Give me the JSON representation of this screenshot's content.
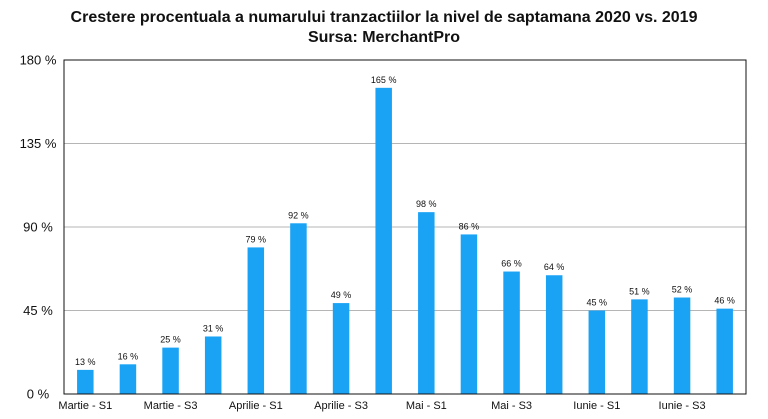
{
  "chart_data": {
    "type": "bar",
    "title": "Crestere procentuala a numarului tranzactiilor la nivel de saptamana 2020 vs. 2019",
    "subtitle": "Sursa: MerchantPro",
    "xlabel": "",
    "ylabel": "",
    "ylim": [
      0,
      180
    ],
    "yticks": [
      0,
      45,
      90,
      135,
      180
    ],
    "ytick_labels": [
      "0 %",
      "45 %",
      "90 %",
      "135 %",
      "180 %"
    ],
    "grid": true,
    "legend": "none",
    "bar_color": "#1aa3f5",
    "categories": [
      "Martie - S1",
      "Martie - S2",
      "Martie - S3",
      "Martie - S4",
      "Aprilie - S1",
      "Aprilie - S2",
      "Aprilie - S3",
      "Aprilie - S4",
      "Mai - S1",
      "Mai - S2",
      "Mai - S3",
      "Mai - S4",
      "Iunie - S1",
      "Iunie - S2",
      "Iunie - S3",
      "Iunie - S4"
    ],
    "x_tick_labels": [
      "Martie - S1",
      "Martie - S3",
      "Aprilie - S1",
      "Aprilie - S3",
      "Mai - S1",
      "Mai - S3",
      "Iunie - S1",
      "Iunie - S3"
    ],
    "values": [
      13,
      16,
      25,
      31,
      79,
      92,
      49,
      165,
      98,
      86,
      66,
      64,
      45,
      51,
      52,
      46
    ],
    "value_labels": [
      "13 %",
      "16 %",
      "25 %",
      "31 %",
      "79 %",
      "92 %",
      "49 %",
      "165 %",
      "98 %",
      "86 %",
      "66 %",
      "64 %",
      "45 %",
      "51 %",
      "52 %",
      "46 %"
    ]
  }
}
